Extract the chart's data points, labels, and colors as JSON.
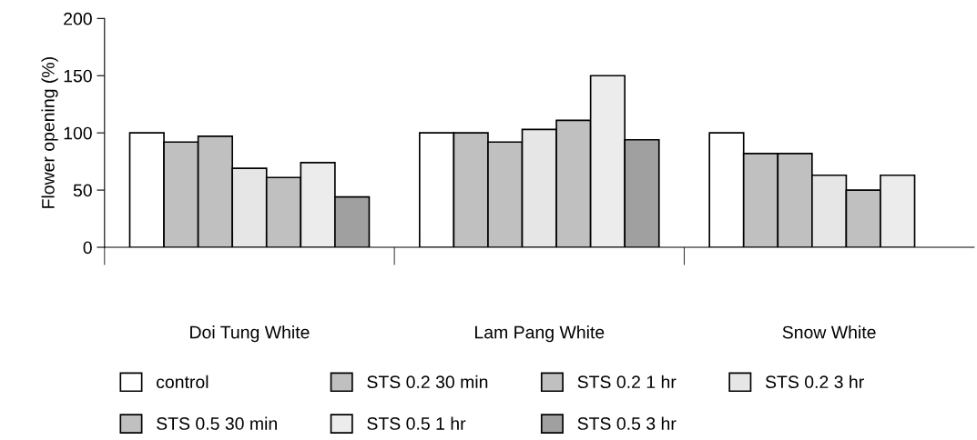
{
  "chart_data": {
    "type": "bar",
    "ylabel": "Flower opening (%)",
    "categories": [
      "Doi Tung White",
      "Lam Pang White",
      "Snow White"
    ],
    "series": [
      {
        "name": "control",
        "color": "#ffffff",
        "values": [
          100,
          100,
          100
        ]
      },
      {
        "name": "STS 0.2 30 min",
        "color": "#c0c0c0",
        "values": [
          92,
          100,
          82
        ]
      },
      {
        "name": "STS 0.2 1 hr",
        "color": "#c0c0c0",
        "values": [
          97,
          92,
          82
        ]
      },
      {
        "name": "STS 0.2 3 hr",
        "color": "#e6e6e6",
        "values": [
          69,
          103,
          63
        ]
      },
      {
        "name": "STS 0.5 30 min",
        "color": "#c0c0c0",
        "values": [
          61,
          111,
          50
        ]
      },
      {
        "name": "STS 0.5 1 hr",
        "color": "#ececec",
        "values": [
          74,
          150,
          63
        ]
      },
      {
        "name": "STS 0.5 3 hr",
        "color": "#a0a0a0",
        "values": [
          44,
          94,
          null
        ]
      }
    ],
    "ylim": [
      0,
      200
    ],
    "yticks": [
      0,
      50,
      100,
      150,
      200
    ],
    "grid": false,
    "legend": "bottom"
  }
}
